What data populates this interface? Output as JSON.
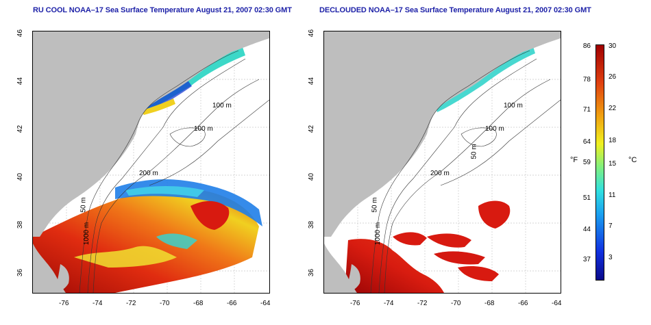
{
  "panels": [
    {
      "title": "RU COOL NOAA–17 Sea Surface Temperature August 21, 2007 02:30 GMT"
    },
    {
      "title": "DECLOUDED NOAA–17 Sea Surface Temperature August 21, 2007 02:30 GMT"
    }
  ],
  "axes": {
    "lon_ticks": [
      "-76",
      "-74",
      "-72",
      "-70",
      "-68",
      "-66",
      "-64"
    ],
    "lat_ticks": [
      "46",
      "44",
      "42",
      "40",
      "38",
      "36"
    ]
  },
  "contours": {
    "l100": "100 m",
    "l100b": "100 m",
    "l200": "200 m",
    "l50": "50 m",
    "l50b": "50 m",
    "l1000": "1000 m"
  },
  "colorbar": {
    "unit_f": "°F",
    "unit_c": "°C",
    "f_ticks": [
      "86",
      "78",
      "71",
      "64",
      "59",
      "51",
      "44",
      "37"
    ],
    "c_ticks": [
      "30",
      "26",
      "22",
      "18",
      "15",
      "11",
      "7",
      "3"
    ]
  },
  "colors": {
    "land": "#bebebe",
    "title": "#1e22a8",
    "warm": "#c81810",
    "cool": "#1f8ef0"
  }
}
